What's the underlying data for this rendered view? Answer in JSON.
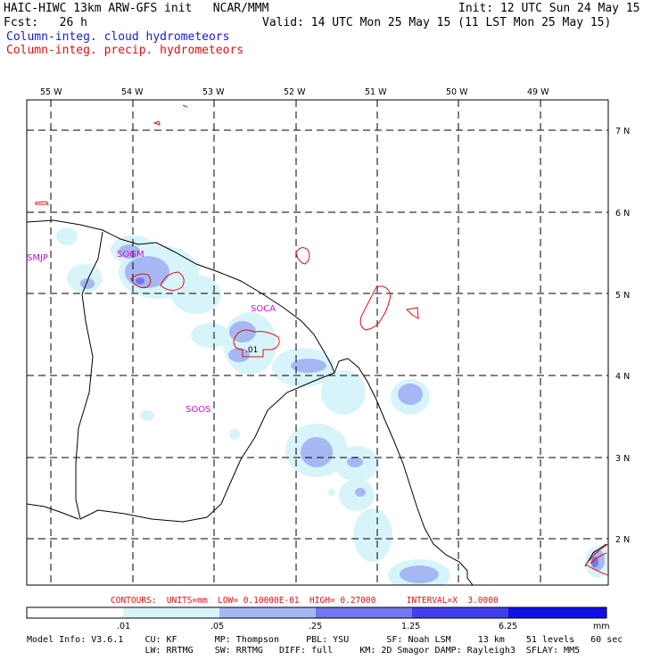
{
  "header": {
    "model_title": "HAIC-HIWC 13km ARW-GFS init   NCAR/MMM",
    "init": "Init: 12 UTC Sun 24 May 15",
    "fcst": "Fcst:   26 h",
    "valid": "Valid: 14 UTC Mon 25 May 15 (11 LST Mon 25 May 15)",
    "field1": "Column-integ. cloud hydrometeors",
    "field2": "Column-integ. precip. hydrometeors",
    "field1_color": "#1a1ad6",
    "field2_color": "#e01010"
  },
  "axes": {
    "lon_labels": [
      "55 W",
      "54 W",
      "53 W",
      "52 W",
      "51 W",
      "50 W",
      "49 W"
    ],
    "lat_labels": [
      "7 N",
      "6 N",
      "5 N",
      "4 N",
      "3 N",
      "2 N"
    ]
  },
  "stations": [
    "SMJP",
    "SOGM",
    "SOCA",
    "SOOS"
  ],
  "contour_value_label": ".01",
  "contours_info": "CONTOURS:  UNITS=mm  LOW= 0.10000E-01  HIGH= 0.27000      INTERVAL=X  3.0000",
  "colorbar": {
    "ticks": [
      ".01",
      ".05",
      ".25",
      "1.25",
      "6.25"
    ],
    "units": "mm",
    "colors": [
      "#ffffff",
      "#d8f4fb",
      "#a6b8f3",
      "#7477ee",
      "#4040ea",
      "#1010e6"
    ]
  },
  "model_info": {
    "line1": "Model Info: V3.6.1    CU: KF       MP: Thompson     PBL: YSU       SF: Noah LSM     13 km    51 levels   60 sec",
    "line2": "                      LW: RRTMG    SW: RRTMG   DIFF: full     KM: 2D Smagor DAMP: Rayleigh3  SFLAY: MM5"
  }
}
